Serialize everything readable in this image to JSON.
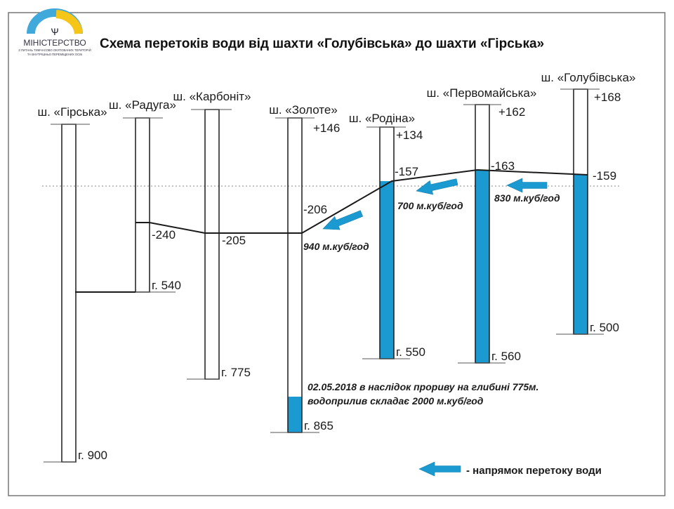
{
  "logo": {
    "name": "МІНІСТЕРСТВО",
    "subtitle_1": "З ПИТАНЬ ТИМЧАСОВО ОКУПОВАНИХ ТЕРИТОРІЙ",
    "subtitle_2": "ТА ВНУТРІШНЬО ПЕРЕМІЩЕНИХ ОСІБ"
  },
  "title": "Схема перетоків води від шахти «Голубівська» до шахти «Гірська»",
  "colors": {
    "water": "#1a9ad0",
    "line": "#1a1a1a"
  },
  "mines": [
    {
      "name": "ш. «Гірська»",
      "level": "",
      "bottom": "г. 900",
      "water": ""
    },
    {
      "name": "ш. «Радуга»",
      "level": "",
      "bottom": "г. 540",
      "water": "-240"
    },
    {
      "name": "ш. «Карбоніт»",
      "level": "",
      "bottom": "г. 775",
      "water": "-205"
    },
    {
      "name": "ш. «Золоте»",
      "level": "+146",
      "bottom": "г. 865",
      "water": "-206"
    },
    {
      "name": "ш. «Родіна»",
      "level": "+134",
      "bottom": "г. 550",
      "water": "-157"
    },
    {
      "name": "ш. «Первомайська»",
      "level": "+162",
      "bottom": "г. 560",
      "water": "-163"
    },
    {
      "name": "ш. «Голубівська»",
      "level": "+168",
      "bottom": "г. 500",
      "water": "-159"
    }
  ],
  "flows": [
    "940 м.куб/год",
    "700 м.куб/год",
    "830 м.куб/год"
  ],
  "note": {
    "line1": "02.05.2018 в наслідок прориву на глибині 775м.",
    "line2": "водоприлив складає 2000 м.куб/год"
  },
  "legend": {
    "icon": "arrow-left-icon",
    "label": "- напрямок перетоку води"
  }
}
